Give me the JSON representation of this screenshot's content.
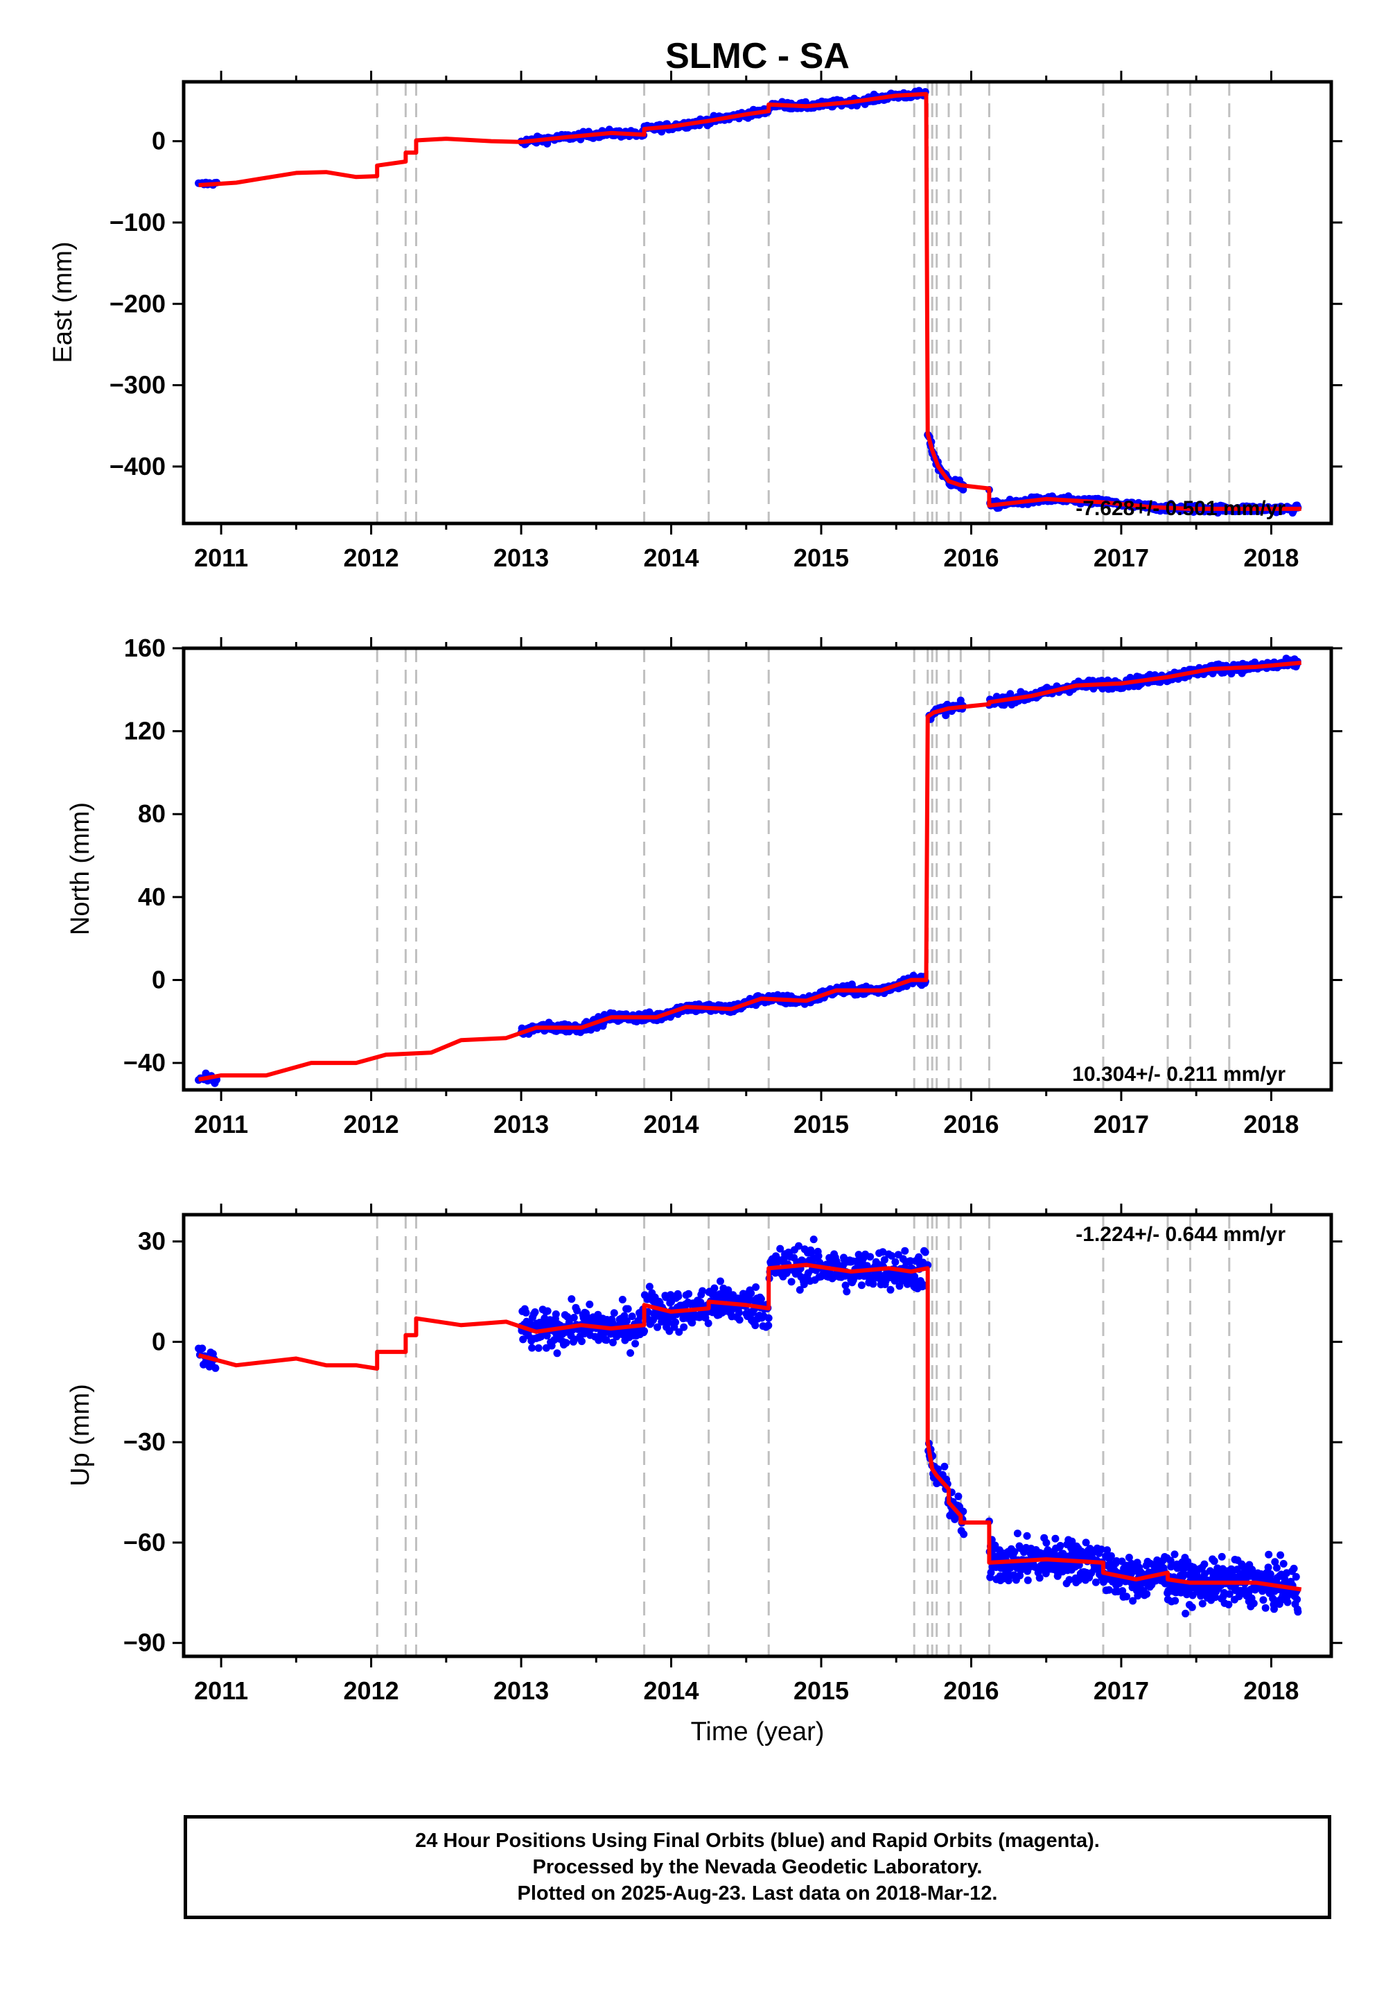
{
  "title": "SLMC - SA",
  "xlabel": "Time (year)",
  "footer": {
    "line1": "24 Hour Positions Using Final Orbits (blue) and Rapid Orbits (magenta).",
    "line2": "Processed by the Nevada Geodetic Laboratory.",
    "line3": "Plotted on 2025-Aug-23. Last data on 2018-Mar-12."
  },
  "colors": {
    "data": "#0000ff",
    "model": "#ff0000",
    "events": "#c0c0c0"
  },
  "chart_data": [
    {
      "type": "scatter",
      "ylabel": "East (mm)",
      "xlim": [
        2010.75,
        2018.4
      ],
      "ylim": [
        -470,
        73
      ],
      "yticks": [
        0,
        -100,
        -200,
        -300,
        -400
      ],
      "ytick_labels": [
        "0",
        "−100",
        "−200",
        "−300",
        "−400"
      ],
      "xticks": [
        2011,
        2012,
        2013,
        2014,
        2015,
        2016,
        2017,
        2018
      ],
      "rate_label": "-7.628+/- 0.501 mm/yr",
      "rate_position": "bottom-right",
      "event_lines": [
        2012.04,
        2012.23,
        2012.3,
        2013.82,
        2014.25,
        2014.65,
        2015.62,
        2015.71,
        2015.74,
        2015.77,
        2015.85,
        2015.93,
        2016.12,
        2016.88,
        2017.31,
        2017.46,
        2017.72
      ],
      "model": [
        [
          2010.85,
          -54
        ],
        [
          2011.1,
          -51
        ],
        [
          2011.3,
          -45
        ],
        [
          2011.5,
          -39
        ],
        [
          2011.7,
          -38
        ],
        [
          2011.9,
          -44
        ],
        [
          2012.04,
          -43
        ],
        [
          2012.04,
          -30
        ],
        [
          2012.23,
          -25
        ],
        [
          2012.23,
          -14
        ],
        [
          2012.3,
          -14
        ],
        [
          2012.3,
          1
        ],
        [
          2012.5,
          3
        ],
        [
          2012.8,
          0
        ],
        [
          2013.0,
          -1
        ],
        [
          2013.3,
          5
        ],
        [
          2013.6,
          10
        ],
        [
          2013.82,
          8
        ],
        [
          2013.82,
          15
        ],
        [
          2014.0,
          18
        ],
        [
          2014.25,
          25
        ],
        [
          2014.5,
          33
        ],
        [
          2014.65,
          37
        ],
        [
          2014.65,
          45
        ],
        [
          2014.9,
          43
        ],
        [
          2015.2,
          48
        ],
        [
          2015.5,
          56
        ],
        [
          2015.7,
          58
        ],
        [
          2015.71,
          -360
        ],
        [
          2015.74,
          -380
        ],
        [
          2015.78,
          -400
        ],
        [
          2015.85,
          -418
        ],
        [
          2015.93,
          -423
        ],
        [
          2016.12,
          -427
        ],
        [
          2016.12,
          -448
        ],
        [
          2016.5,
          -440
        ],
        [
          2016.88,
          -444
        ],
        [
          2017.2,
          -450
        ],
        [
          2017.46,
          -452
        ],
        [
          2017.8,
          -452
        ],
        [
          2018.2,
          -452
        ]
      ],
      "segments": [
        {
          "t0": 2010.85,
          "t1": 2010.97,
          "m": "linear",
          "y0": -53,
          "y1": -52,
          "noise": 2,
          "step": 0.012
        },
        {
          "t0": 2013.0,
          "t1": 2014.65,
          "m": "model",
          "noise": 3,
          "step": 0.006
        },
        {
          "t0": 2014.65,
          "t1": 2015.7,
          "m": "model",
          "noise": 3,
          "step": 0.006
        },
        {
          "t0": 2015.71,
          "t1": 2015.95,
          "m": "model",
          "noise": 4,
          "step": 0.004
        },
        {
          "t0": 2016.12,
          "t1": 2018.18,
          "m": "model",
          "noise": 3,
          "step": 0.006
        }
      ]
    },
    {
      "type": "scatter",
      "ylabel": "North (mm)",
      "xlim": [
        2010.75,
        2018.4
      ],
      "ylim": [
        -53,
        160
      ],
      "yticks": [
        160,
        120,
        80,
        40,
        0,
        -40
      ],
      "ytick_labels": [
        "160",
        "120",
        "80",
        "40",
        "0",
        "−40"
      ],
      "xticks": [
        2011,
        2012,
        2013,
        2014,
        2015,
        2016,
        2017,
        2018
      ],
      "rate_label": "10.304+/- 0.211 mm/yr",
      "rate_position": "bottom-right",
      "event_lines": [
        2012.04,
        2012.23,
        2012.3,
        2013.82,
        2014.25,
        2014.65,
        2015.62,
        2015.71,
        2015.74,
        2015.77,
        2015.85,
        2015.93,
        2016.12,
        2016.88,
        2017.31,
        2017.46,
        2017.72
      ],
      "model": [
        [
          2010.85,
          -48
        ],
        [
          2011.0,
          -46
        ],
        [
          2011.3,
          -46
        ],
        [
          2011.6,
          -40
        ],
        [
          2011.9,
          -40
        ],
        [
          2012.1,
          -36
        ],
        [
          2012.4,
          -35
        ],
        [
          2012.6,
          -29
        ],
        [
          2012.9,
          -28
        ],
        [
          2013.1,
          -23
        ],
        [
          2013.4,
          -23
        ],
        [
          2013.6,
          -18
        ],
        [
          2013.9,
          -18
        ],
        [
          2014.1,
          -13
        ],
        [
          2014.4,
          -14
        ],
        [
          2014.6,
          -9
        ],
        [
          2014.9,
          -10
        ],
        [
          2015.1,
          -5
        ],
        [
          2015.4,
          -5
        ],
        [
          2015.6,
          0
        ],
        [
          2015.7,
          0
        ],
        [
          2015.71,
          127
        ],
        [
          2015.75,
          129
        ],
        [
          2015.85,
          131
        ],
        [
          2016.12,
          133
        ],
        [
          2016.12,
          134
        ],
        [
          2016.4,
          137
        ],
        [
          2016.7,
          142
        ],
        [
          2017.0,
          143
        ],
        [
          2017.3,
          146
        ],
        [
          2017.6,
          150
        ],
        [
          2017.9,
          151
        ],
        [
          2018.2,
          153
        ]
      ],
      "segments": [
        {
          "t0": 2010.85,
          "t1": 2010.97,
          "m": "linear",
          "y0": -47,
          "y1": -48,
          "noise": 1.5,
          "step": 0.012
        },
        {
          "t0": 2013.0,
          "t1": 2015.7,
          "m": "model",
          "noise": 1.6,
          "step": 0.005
        },
        {
          "t0": 2015.72,
          "t1": 2015.95,
          "m": "model",
          "noise": 1.6,
          "step": 0.005
        },
        {
          "t0": 2016.12,
          "t1": 2018.18,
          "m": "model",
          "noise": 1.6,
          "step": 0.005
        }
      ]
    },
    {
      "type": "scatter",
      "ylabel": "Up (mm)",
      "xlim": [
        2010.75,
        2018.4
      ],
      "ylim": [
        -94,
        38
      ],
      "yticks": [
        30,
        0,
        -30,
        -60,
        -90
      ],
      "ytick_labels": [
        "30",
        "0",
        "−30",
        "−60",
        "−90"
      ],
      "xticks": [
        2011,
        2012,
        2013,
        2014,
        2015,
        2016,
        2017,
        2018
      ],
      "rate_label": "-1.224+/- 0.644 mm/yr",
      "rate_position": "top-right",
      "event_lines": [
        2012.04,
        2012.23,
        2012.3,
        2013.82,
        2014.25,
        2014.65,
        2015.62,
        2015.71,
        2015.74,
        2015.77,
        2015.85,
        2015.93,
        2016.12,
        2016.88,
        2017.31,
        2017.46,
        2017.72
      ],
      "model": [
        [
          2010.85,
          -4
        ],
        [
          2011.1,
          -7
        ],
        [
          2011.3,
          -6
        ],
        [
          2011.5,
          -5
        ],
        [
          2011.7,
          -7
        ],
        [
          2011.9,
          -7
        ],
        [
          2012.04,
          -8
        ],
        [
          2012.04,
          -3
        ],
        [
          2012.23,
          -3
        ],
        [
          2012.23,
          2
        ],
        [
          2012.3,
          2
        ],
        [
          2012.3,
          7
        ],
        [
          2012.6,
          5
        ],
        [
          2012.9,
          6
        ],
        [
          2013.1,
          3
        ],
        [
          2013.4,
          5
        ],
        [
          2013.6,
          4
        ],
        [
          2013.82,
          5
        ],
        [
          2013.82,
          11
        ],
        [
          2014.0,
          9
        ],
        [
          2014.25,
          10
        ],
        [
          2014.25,
          12
        ],
        [
          2014.5,
          11
        ],
        [
          2014.65,
          10
        ],
        [
          2014.65,
          22
        ],
        [
          2014.9,
          23
        ],
        [
          2015.2,
          21
        ],
        [
          2015.45,
          22
        ],
        [
          2015.6,
          21
        ],
        [
          2015.71,
          22
        ],
        [
          2015.71,
          -30
        ],
        [
          2015.74,
          -38
        ],
        [
          2015.77,
          -40
        ],
        [
          2015.85,
          -44
        ],
        [
          2015.85,
          -48
        ],
        [
          2015.93,
          -52
        ],
        [
          2015.93,
          -54
        ],
        [
          2016.12,
          -54
        ],
        [
          2016.12,
          -66
        ],
        [
          2016.5,
          -65
        ],
        [
          2016.88,
          -66
        ],
        [
          2016.88,
          -69
        ],
        [
          2017.1,
          -71
        ],
        [
          2017.31,
          -69
        ],
        [
          2017.31,
          -71
        ],
        [
          2017.46,
          -72
        ],
        [
          2017.72,
          -72
        ],
        [
          2017.9,
          -72
        ],
        [
          2018.2,
          -74
        ]
      ],
      "segments": [
        {
          "t0": 2010.85,
          "t1": 2010.97,
          "m": "linear",
          "y0": -3,
          "y1": -7,
          "noise": 3,
          "step": 0.008
        },
        {
          "t0": 2013.0,
          "t1": 2014.65,
          "m": "model",
          "noise": 4.2,
          "step": 0.004
        },
        {
          "t0": 2014.65,
          "t1": 2015.7,
          "m": "model",
          "noise": 4.2,
          "step": 0.004
        },
        {
          "t0": 2015.71,
          "t1": 2015.95,
          "m": "model",
          "noise": 3.5,
          "step": 0.004
        },
        {
          "t0": 2016.12,
          "t1": 2018.18,
          "m": "model",
          "noise": 4.5,
          "step": 0.003
        }
      ]
    }
  ]
}
